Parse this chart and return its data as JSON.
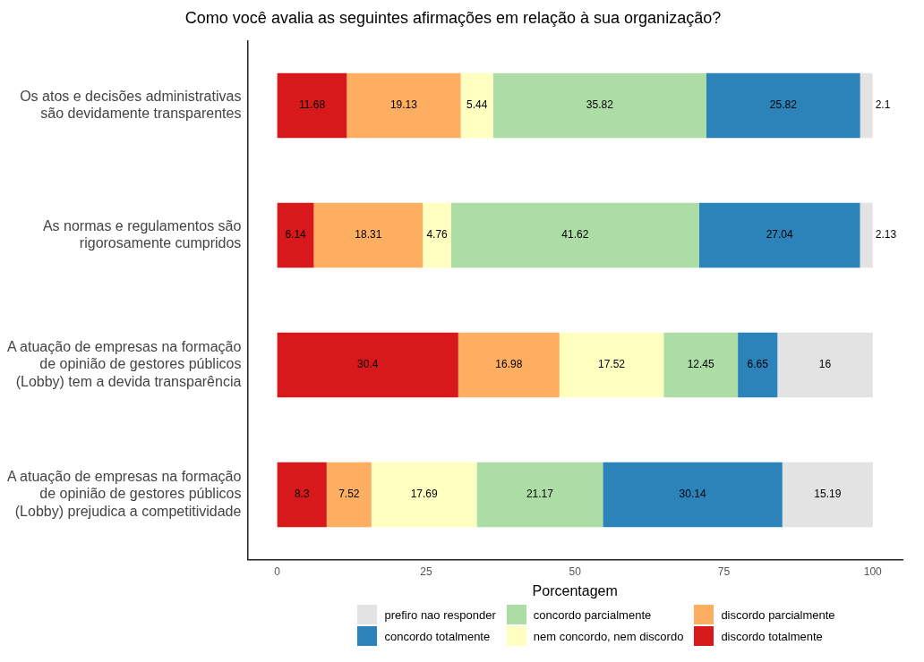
{
  "chart_data": {
    "type": "bar",
    "orientation": "horizontal",
    "stacked": true,
    "title": "Como você avalia as seguintes afirmações em relação à sua organização?",
    "xlabel": "Porcentagem",
    "categories": [
      "Os atos e decisões administrativas\nsão devidamente transparentes",
      "As normas e regulamentos são\nrigorosamente cumpridos",
      "A atuação de empresas na formação\nde opinião de gestores públicos\n(Lobby) tem a devida transparência",
      "A atuação de empresas na formação\nde opinião de gestores públicos\n(Lobby) prejudica a competitividade"
    ],
    "series": [
      {
        "name": "discordo totalmente",
        "color": "#d7191c",
        "values": [
          11.68,
          6.14,
          30.4,
          8.3
        ]
      },
      {
        "name": "discordo parcialmente",
        "color": "#fdae61",
        "values": [
          19.13,
          18.31,
          16.98,
          7.52
        ]
      },
      {
        "name": "nem concordo, nem discordo",
        "color": "#ffffbf",
        "values": [
          5.44,
          4.76,
          17.52,
          17.69
        ]
      },
      {
        "name": "concordo parcialmente",
        "color": "#abdda4",
        "values": [
          35.82,
          41.62,
          12.45,
          21.17
        ]
      },
      {
        "name": "concordo totalmente",
        "color": "#2b83ba",
        "values": [
          25.82,
          27.04,
          6.65,
          30.14
        ]
      },
      {
        "name": "prefiro nao responder",
        "color": "#e3e3e3",
        "values": [
          2.1,
          2.13,
          16,
          15.19
        ]
      }
    ],
    "xlim": [
      -5,
      105
    ],
    "xticks": [
      0,
      25,
      50,
      75,
      100
    ],
    "grid": false,
    "legend": "bottom",
    "data_labels": true
  }
}
